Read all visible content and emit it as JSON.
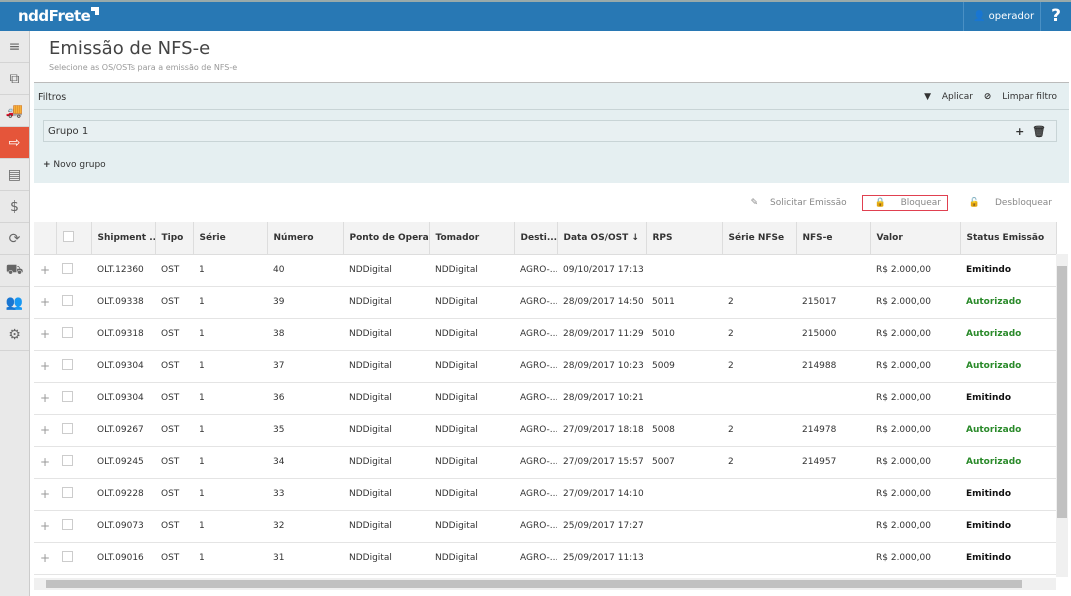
{
  "app": {
    "logo": "nddFrete",
    "user": "operador",
    "help": "?"
  },
  "sidebar": [
    {
      "icon": "menu-icon",
      "g": "≡"
    },
    {
      "icon": "documents-icon",
      "g": "⧉"
    },
    {
      "icon": "truck-icon",
      "g": "🚚"
    },
    {
      "icon": "export-icon",
      "g": "⇨",
      "active": true
    },
    {
      "icon": "file-icon",
      "g": "▤"
    },
    {
      "icon": "money-icon",
      "g": "$"
    },
    {
      "icon": "coin-cycle-icon",
      "g": "⟳"
    },
    {
      "icon": "truck-outline-icon",
      "g": "⛟"
    },
    {
      "icon": "users-icon",
      "g": "👥"
    },
    {
      "icon": "gears-icon",
      "g": "⚙"
    }
  ],
  "page": {
    "title": "Emissão de NFS-e",
    "subtitle": "Selecione as OS/OSTs para a emissão de NFS-e"
  },
  "filters": {
    "label": "Filtros",
    "apply": "Aplicar",
    "clear": "Limpar filtro",
    "group": "Grupo 1",
    "new_group": "Novo grupo"
  },
  "toolbar": {
    "request": "Solicitar Emissão",
    "lock": "Bloquear",
    "unlock": "Desbloquear"
  },
  "table": {
    "headers": [
      "Shipment ...",
      "Tipo",
      "Série",
      "Número",
      "Ponto de Opera...",
      "Tomador",
      "Desti...",
      "Data OS/OST ↓",
      "RPS",
      "Série NFSe",
      "NFS-e",
      "Valor",
      "Status Emissão"
    ],
    "rows": [
      [
        "OLT.12360",
        "OST",
        "1",
        "40",
        "NDDigital",
        "NDDigital",
        "AGRO-...",
        "09/10/2017 17:13",
        "",
        "",
        "",
        "R$ 2.000,00",
        "Emitindo"
      ],
      [
        "OLT.09338",
        "OST",
        "1",
        "39",
        "NDDigital",
        "NDDigital",
        "AGRO-...",
        "28/09/2017 14:50",
        "5011",
        "2",
        "215017",
        "R$ 2.000,00",
        "Autorizado"
      ],
      [
        "OLT.09318",
        "OST",
        "1",
        "38",
        "NDDigital",
        "NDDigital",
        "AGRO-...",
        "28/09/2017 11:29",
        "5010",
        "2",
        "215000",
        "R$ 2.000,00",
        "Autorizado"
      ],
      [
        "OLT.09304",
        "OST",
        "1",
        "37",
        "NDDigital",
        "NDDigital",
        "AGRO-...",
        "28/09/2017 10:23",
        "5009",
        "2",
        "214988",
        "R$ 2.000,00",
        "Autorizado"
      ],
      [
        "OLT.09304",
        "OST",
        "1",
        "36",
        "NDDigital",
        "NDDigital",
        "AGRO-...",
        "28/09/2017 10:21",
        "",
        "",
        "",
        "R$ 2.000,00",
        "Emitindo"
      ],
      [
        "OLT.09267",
        "OST",
        "1",
        "35",
        "NDDigital",
        "NDDigital",
        "AGRO-...",
        "27/09/2017 18:18",
        "5008",
        "2",
        "214978",
        "R$ 2.000,00",
        "Autorizado"
      ],
      [
        "OLT.09245",
        "OST",
        "1",
        "34",
        "NDDigital",
        "NDDigital",
        "AGRO-...",
        "27/09/2017 15:57",
        "5007",
        "2",
        "214957",
        "R$ 2.000,00",
        "Autorizado"
      ],
      [
        "OLT.09228",
        "OST",
        "1",
        "33",
        "NDDigital",
        "NDDigital",
        "AGRO-...",
        "27/09/2017 14:10",
        "",
        "",
        "",
        "R$ 2.000,00",
        "Emitindo"
      ],
      [
        "OLT.09073",
        "OST",
        "1",
        "32",
        "NDDigital",
        "NDDigital",
        "AGRO-...",
        "25/09/2017 17:27",
        "",
        "",
        "",
        "R$ 2.000,00",
        "Emitindo"
      ],
      [
        "OLT.09016",
        "OST",
        "1",
        "31",
        "NDDigital",
        "NDDigital",
        "AGRO-...",
        "25/09/2017 11:13",
        "",
        "",
        "",
        "R$ 2.000,00",
        "Emitindo"
      ]
    ]
  },
  "colors": {
    "topbar": "#2878b4",
    "active": "#e5553a",
    "authorized": "#2a8a2a"
  }
}
